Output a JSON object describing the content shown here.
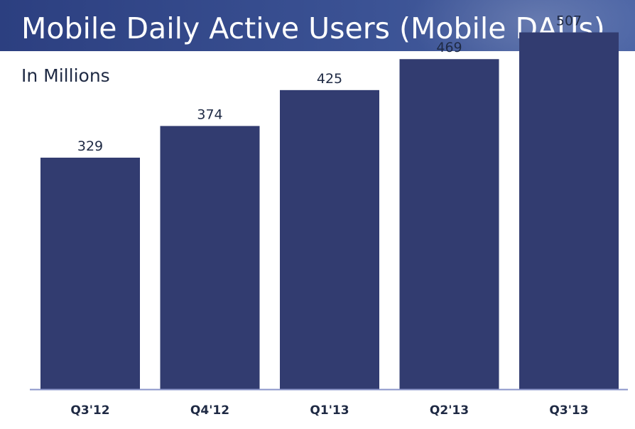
{
  "header": {
    "title": "Mobile Daily Active Users (Mobile DAUs)",
    "subtitle": "In Millions"
  },
  "colors": {
    "bar": "#323c70",
    "axis": "#8a94c9",
    "label": "#1f2a44"
  },
  "chart_data": {
    "type": "bar",
    "categories": [
      "Q3'12",
      "Q4'12",
      "Q1'13",
      "Q2'13",
      "Q3'13"
    ],
    "values": [
      329,
      374,
      425,
      469,
      507
    ],
    "data_labels": [
      "329",
      "374",
      "425",
      "469",
      "507"
    ],
    "ylim": [
      0,
      553
    ],
    "grid": false,
    "legend": "none"
  }
}
